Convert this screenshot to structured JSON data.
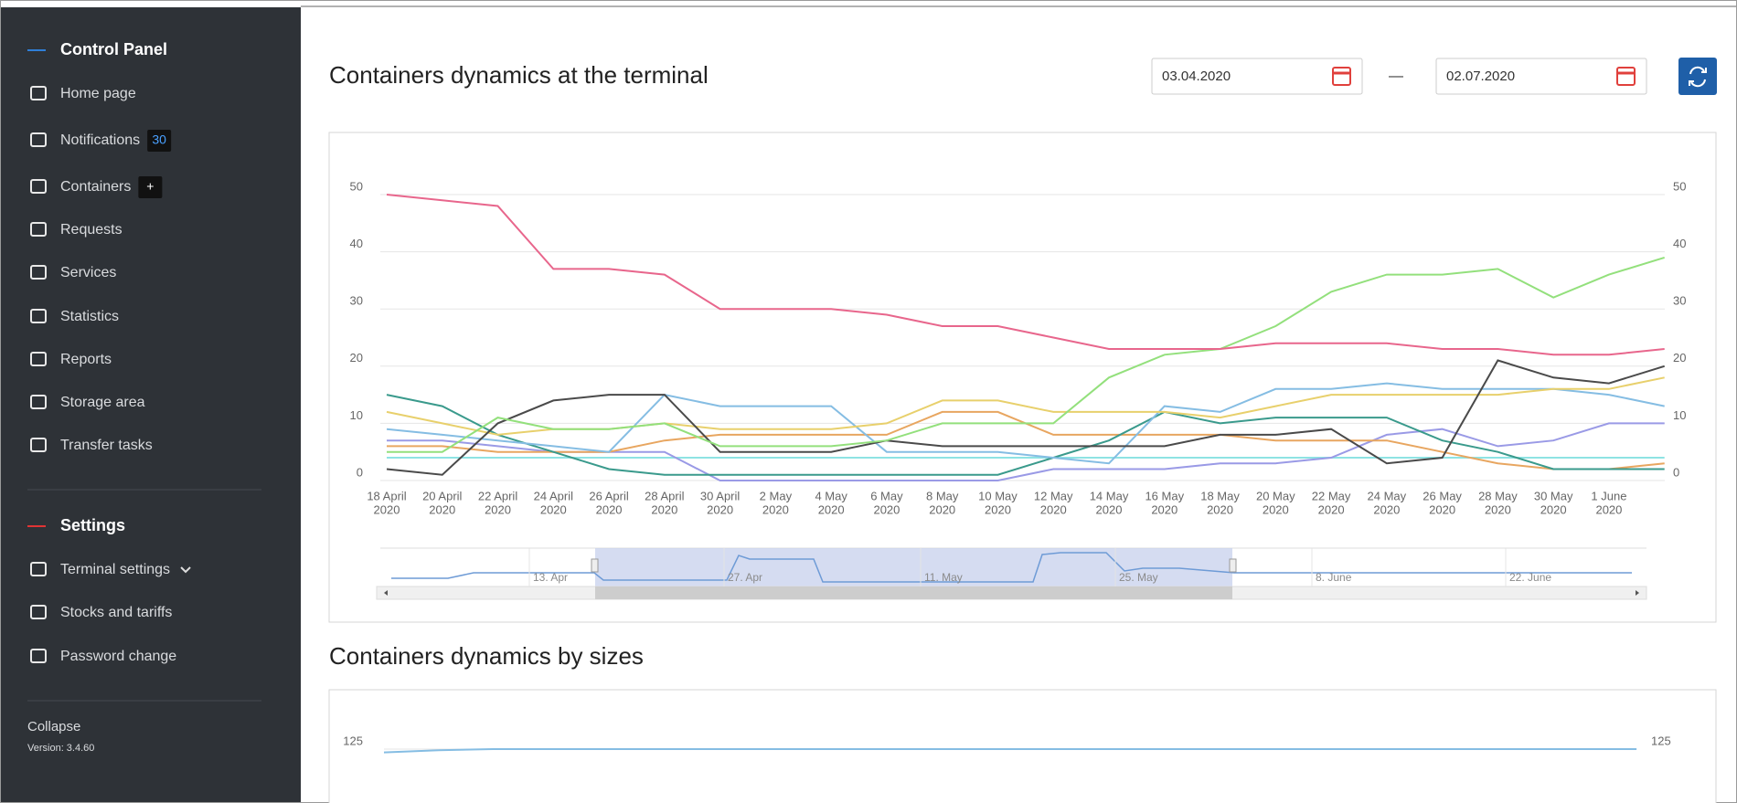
{
  "sidebar": {
    "title": "Control Panel",
    "menu": [
      {
        "label": "Home page"
      },
      {
        "label": "Notifications",
        "badge": 30
      },
      {
        "label": "Containers",
        "badge": "+"
      },
      {
        "label": "Requests"
      },
      {
        "label": "Services"
      },
      {
        "label": "Statistics"
      },
      {
        "label": "Reports"
      },
      {
        "label": "Storage area"
      },
      {
        "label": "Transfer tasks"
      }
    ],
    "settings_title": "Settings",
    "settings_menu": [
      "Terminal settings",
      "Stocks and tariffs",
      "Password change"
    ],
    "collapse": "Collapse",
    "version": "Version: 3.4.60"
  },
  "date_from": "03.04.2020",
  "date_separator": "—",
  "date_to": "02.07.2020",
  "chart_data": [
    {
      "type": "line",
      "title": "Containers dynamics at the terminal",
      "categories": [
        [
          "18 April",
          "2020"
        ],
        [
          "20 April",
          "2020"
        ],
        [
          "22 April",
          "2020"
        ],
        [
          "24 April",
          "2020"
        ],
        [
          "26 April",
          "2020"
        ],
        [
          "28 April",
          "2020"
        ],
        [
          "30 April",
          "2020"
        ],
        [
          "2 May",
          "2020"
        ],
        [
          "4 May",
          "2020"
        ],
        [
          "6 May",
          "2020"
        ],
        [
          "8 May",
          "2020"
        ],
        [
          "10 May",
          "2020"
        ],
        [
          "12 May",
          "2020"
        ],
        [
          "14 May",
          "2020"
        ],
        [
          "16 May",
          "2020"
        ],
        [
          "18 May",
          "2020"
        ],
        [
          "20 May",
          "2020"
        ],
        [
          "22 May",
          "2020"
        ],
        [
          "24 May",
          "2020"
        ],
        [
          "26 May",
          "2020"
        ],
        [
          "28 May",
          "2020"
        ],
        [
          "30 May",
          "2020"
        ],
        [
          "1 June",
          "2020"
        ],
        null
      ],
      "ylim": [
        0,
        50
      ],
      "yticks": [
        0,
        10,
        20,
        30,
        40,
        50
      ],
      "y2lim": [
        0,
        50
      ],
      "y2ticks": [
        0,
        10,
        20,
        30,
        40,
        50
      ],
      "grid": true,
      "series": [
        {
          "color": "#8ee3e3",
          "values": [
            4,
            4,
            4,
            4,
            4,
            4,
            4,
            4,
            4,
            4,
            4,
            4,
            4,
            4,
            4,
            4,
            4,
            4,
            4,
            4,
            4,
            4,
            4,
            4
          ]
        },
        {
          "color": "#9a9ae6",
          "values": [
            7,
            7,
            6,
            5,
            5,
            5,
            0,
            0,
            0,
            0,
            0,
            0,
            2,
            2,
            2,
            3,
            3,
            4,
            8,
            9,
            6,
            7,
            10,
            10
          ]
        },
        {
          "color": "#e8a660",
          "values": [
            6,
            6,
            5,
            5,
            5,
            7,
            8,
            8,
            8,
            8,
            12,
            12,
            8,
            8,
            8,
            8,
            7,
            7,
            7,
            5,
            3,
            2,
            2,
            3
          ]
        },
        {
          "color": "#3a9a8c",
          "values": [
            15,
            13,
            8,
            5,
            2,
            1,
            1,
            1,
            1,
            1,
            1,
            1,
            4,
            7,
            12,
            10,
            11,
            11,
            11,
            7,
            5,
            2,
            2,
            2
          ]
        },
        {
          "color": "#85bde3",
          "values": [
            9,
            8,
            7,
            6,
            5,
            15,
            13,
            13,
            13,
            5,
            5,
            5,
            4,
            3,
            13,
            12,
            16,
            16,
            17,
            16,
            16,
            16,
            15,
            13
          ]
        },
        {
          "color": "#e8d06c",
          "values": [
            12,
            10,
            8,
            9,
            9,
            10,
            9,
            9,
            9,
            10,
            14,
            14,
            12,
            12,
            12,
            11,
            13,
            15,
            15,
            15,
            15,
            16,
            16,
            18
          ]
        },
        {
          "color": "#4a4a4a",
          "values": [
            2,
            1,
            10,
            14,
            15,
            15,
            5,
            5,
            5,
            7,
            6,
            6,
            6,
            6,
            6,
            8,
            8,
            9,
            3,
            4,
            21,
            18,
            17,
            20
          ]
        },
        {
          "color": "#93e07c",
          "values": [
            5,
            5,
            11,
            9,
            9,
            10,
            6,
            6,
            6,
            7,
            10,
            10,
            10,
            18,
            22,
            23,
            27,
            33,
            36,
            36,
            37,
            32,
            36,
            39
          ]
        },
        {
          "color": "#e8668c",
          "values": [
            50,
            49,
            48,
            37,
            37,
            36,
            30,
            30,
            30,
            29,
            27,
            27,
            25,
            23,
            23,
            23,
            24,
            24,
            24,
            23,
            23,
            22,
            22,
            23
          ]
        }
      ],
      "navigator_labels": [
        "13. Apr",
        "27. Apr",
        "11. May",
        "25. May",
        "8. June",
        "22. June"
      ]
    },
    {
      "type": "line",
      "title": "Containers dynamics by sizes",
      "ylim": [
        0,
        150
      ],
      "yticks": [
        125
      ],
      "y2lim": [
        0,
        150
      ],
      "y2ticks": [
        125
      ],
      "grid": true,
      "series": [
        {
          "color": "#85bde3",
          "values": [
            122,
            124,
            125,
            125,
            125,
            125,
            125,
            125,
            125,
            125,
            125,
            125,
            125,
            125,
            125,
            125,
            125,
            125,
            125,
            125,
            125,
            125,
            125,
            125
          ]
        }
      ]
    }
  ]
}
